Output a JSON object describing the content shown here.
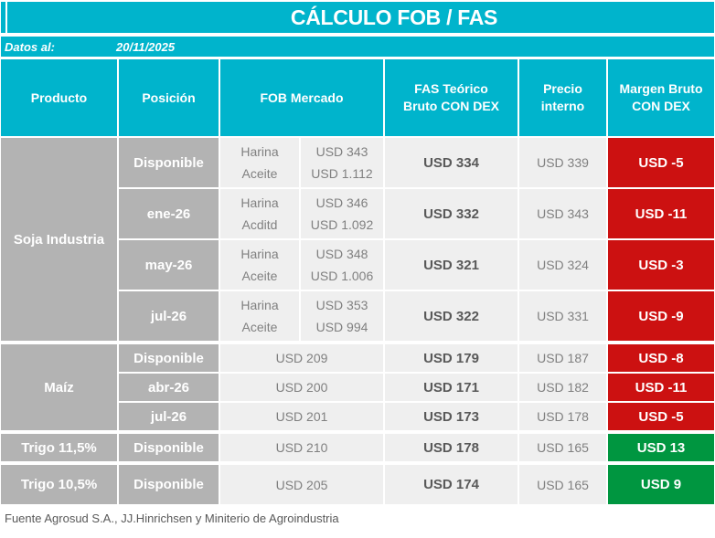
{
  "title": "CÁLCULO FOB / FAS",
  "date_label": "Datos al:",
  "date_value": "20/11/2025",
  "columns": {
    "producto": "Producto",
    "posicion": "Posición",
    "fob": "FOB Mercado",
    "fas": "FAS Teórico\nBruto CON DEX",
    "precio": "Precio\ninterno",
    "margen": "Margen Bruto\nCON DEX"
  },
  "products": [
    {
      "name": "Soja Industria",
      "rows": [
        {
          "posicion": "Disponible",
          "fob_items": [
            {
              "label": "Harina",
              "value": "USD 343"
            },
            {
              "label": "Aceite",
              "value": "USD 1.112"
            }
          ],
          "fas": "USD 334",
          "precio": "USD 339",
          "margen": "USD -5",
          "tone": "negative"
        },
        {
          "posicion": "ene-26",
          "fob_items": [
            {
              "label": "Harina",
              "value": "USD 346"
            },
            {
              "label": "Acditd",
              "value": "USD 1.092"
            }
          ],
          "fas": "USD 332",
          "precio": "USD 343",
          "margen": "USD -11",
          "tone": "negative"
        },
        {
          "posicion": "may-26",
          "fob_items": [
            {
              "label": "Harina",
              "value": "USD 348"
            },
            {
              "label": "Aceite",
              "value": "USD 1.006"
            }
          ],
          "fas": "USD 321",
          "precio": "USD 324",
          "margen": "USD -3",
          "tone": "negative"
        },
        {
          "posicion": "jul-26",
          "fob_items": [
            {
              "label": "Harina",
              "value": "USD 353"
            },
            {
              "label": "Aceite",
              "value": "USD 994"
            }
          ],
          "fas": "USD 322",
          "precio": "USD 331",
          "margen": "USD -9",
          "tone": "negative"
        }
      ]
    },
    {
      "name": "Maíz",
      "rows": [
        {
          "posicion": "Disponible",
          "fob": "USD 209",
          "fas": "USD 179",
          "precio": "USD 187",
          "margen": "USD -8",
          "tone": "negative"
        },
        {
          "posicion": "abr-26",
          "fob": "USD 200",
          "fas": "USD 171",
          "precio": "USD 182",
          "margen": "USD -11",
          "tone": "negative"
        },
        {
          "posicion": "jul-26",
          "fob": "USD 201",
          "fas": "USD 173",
          "precio": "USD 178",
          "margen": "USD -5",
          "tone": "negative"
        }
      ]
    },
    {
      "name": "Trigo 11,5%",
      "rows": [
        {
          "posicion": "Disponible",
          "fob": "USD 210",
          "fas": "USD 178",
          "precio": "USD 165",
          "margen": "USD 13",
          "tone": "positive"
        }
      ]
    },
    {
      "name": "Trigo 10,5%",
      "rows": [
        {
          "posicion": "Disponible",
          "fob": "USD 205",
          "fas": "USD 174",
          "precio": "USD 165",
          "margen": "USD 9",
          "tone": "positive"
        }
      ]
    }
  ],
  "footer": "Fuente Agrosud S.A., JJ.Hinrichsen y Miniterio de Agroindustria",
  "colors": {
    "accent": "#00b4cc",
    "negative": "#cc1111",
    "positive": "#009640",
    "gray-cell": "#b3b3b3",
    "light-cell": "#efefef"
  }
}
